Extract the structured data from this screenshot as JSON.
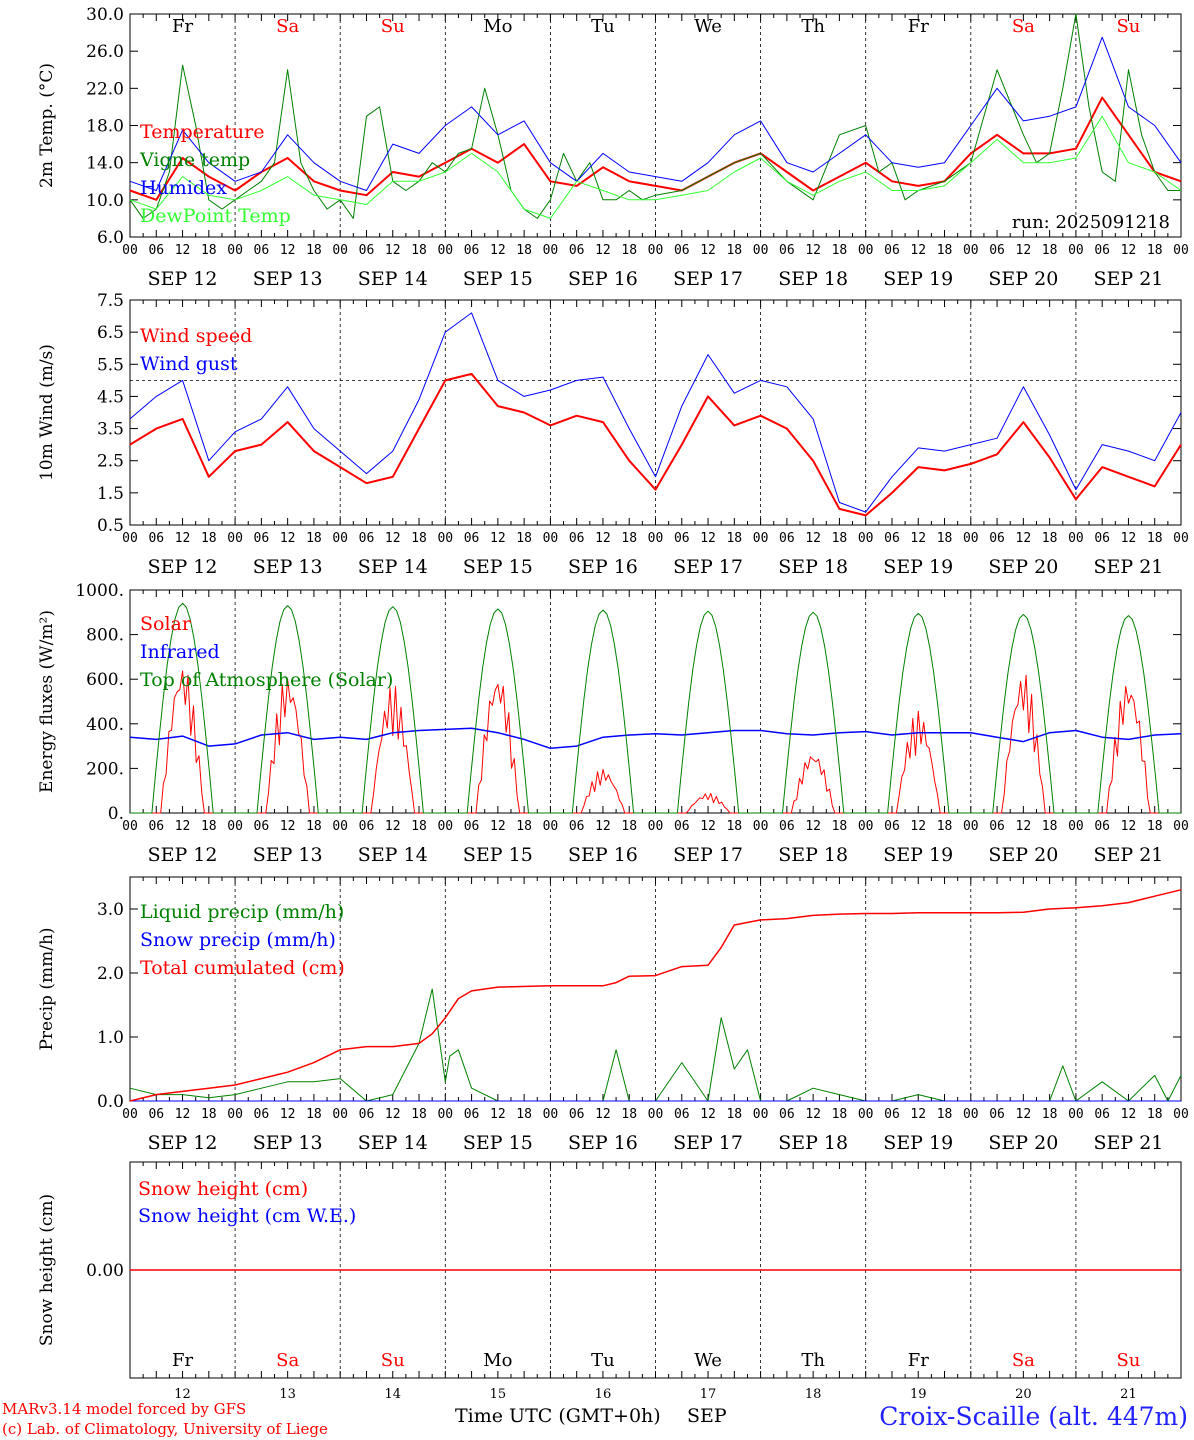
{
  "footer": {
    "model_line": "MARv3.14 model forced by GFS",
    "copyright_line": "(c) Lab. of Climatology, University of Liege",
    "xaxis_title": "Time UTC (GMT+0h)",
    "month": "SEP",
    "station": "Croix-Scaille (alt. 447m)"
  },
  "colors": {
    "red": "#ff0000",
    "green": "#008000",
    "blue": "#0000ff",
    "lime": "#33ff33",
    "black": "#000000"
  },
  "days": [
    {
      "abbr": "Fr",
      "date": "SEP 12",
      "num": "12",
      "weekend": false
    },
    {
      "abbr": "Sa",
      "date": "SEP 13",
      "num": "13",
      "weekend": true
    },
    {
      "abbr": "Su",
      "date": "SEP 14",
      "num": "14",
      "weekend": true
    },
    {
      "abbr": "Mo",
      "date": "SEP 15",
      "num": "15",
      "weekend": false
    },
    {
      "abbr": "Tu",
      "date": "SEP 16",
      "num": "16",
      "weekend": false
    },
    {
      "abbr": "We",
      "date": "SEP 17",
      "num": "17",
      "weekend": false
    },
    {
      "abbr": "Th",
      "date": "SEP 18",
      "num": "18",
      "weekend": false
    },
    {
      "abbr": "Fr",
      "date": "SEP 19",
      "num": "19",
      "weekend": false
    },
    {
      "abbr": "Sa",
      "date": "SEP 20",
      "num": "20",
      "weekend": true
    },
    {
      "abbr": "Su",
      "date": "SEP 21",
      "num": "21",
      "weekend": true
    }
  ],
  "hour_ticks": [
    "00",
    "06",
    "12",
    "18"
  ],
  "hour_end": "00",
  "chart_data": [
    {
      "type": "line",
      "ylabel": "2m Temp. (°C)",
      "ylim": [
        6,
        30
      ],
      "yticks": [
        "6.0",
        "10.0",
        "14.0",
        "18.0",
        "22.0",
        "26.0",
        "30.0"
      ],
      "annotation": "run: 2025091218",
      "x_unit": "hours since SEP 12 00 UTC",
      "series": [
        {
          "name": "Temperature",
          "color": "red",
          "width": 2,
          "x": [
            0,
            6,
            12,
            18,
            24,
            30,
            36,
            42,
            48,
            54,
            60,
            66,
            72,
            78,
            84,
            90,
            96,
            102,
            108,
            114,
            120,
            126,
            132,
            138,
            144,
            150,
            156,
            162,
            168,
            174,
            180,
            186,
            192,
            198,
            204,
            210,
            216,
            222,
            228,
            234,
            240
          ],
          "y": [
            11,
            10,
            14.5,
            12.5,
            11,
            13,
            14.5,
            12,
            11,
            10.5,
            13,
            12.5,
            14,
            15.5,
            14,
            16,
            12,
            11.5,
            13.5,
            12,
            11.5,
            11,
            12.5,
            14,
            15,
            13,
            11,
            12.5,
            14,
            12,
            11.5,
            12,
            15,
            17,
            15,
            15,
            15.5,
            21,
            17,
            13,
            12
          ]
        },
        {
          "name": "Vigne temp",
          "color": "green",
          "width": 1,
          "x": [
            0,
            3,
            6,
            9,
            12,
            15,
            18,
            21,
            24,
            27,
            30,
            33,
            36,
            39,
            42,
            45,
            48,
            51,
            54,
            57,
            60,
            63,
            66,
            69,
            72,
            75,
            78,
            81,
            84,
            87,
            90,
            93,
            96,
            99,
            102,
            105,
            108,
            111,
            114,
            117,
            120,
            126,
            132,
            138,
            144,
            150,
            156,
            162,
            168,
            171,
            174,
            177,
            180,
            186,
            192,
            198,
            204,
            207,
            210,
            213,
            216,
            219,
            222,
            225,
            228,
            231,
            234,
            237,
            240
          ],
          "y": [
            10,
            8,
            9,
            13,
            24.5,
            18,
            10,
            9,
            10,
            11,
            12,
            14,
            24,
            14,
            11,
            9,
            10,
            8,
            19,
            20,
            12,
            11,
            12,
            14,
            13,
            15,
            15.5,
            22,
            17,
            11,
            9,
            8,
            10,
            15,
            12,
            14,
            10,
            10,
            11,
            10,
            10.5,
            11,
            12.5,
            14,
            15,
            12,
            10,
            17,
            18,
            13,
            14,
            10,
            11,
            12,
            14,
            24,
            17,
            14,
            15,
            22,
            30,
            20,
            13,
            12,
            24,
            17,
            13,
            11,
            11
          ]
        },
        {
          "name": "Humidex",
          "color": "blue",
          "width": 1,
          "x": [
            0,
            6,
            12,
            18,
            24,
            30,
            36,
            42,
            48,
            54,
            60,
            66,
            72,
            78,
            84,
            90,
            96,
            102,
            108,
            114,
            120,
            126,
            132,
            138,
            144,
            150,
            156,
            162,
            168,
            174,
            180,
            186,
            192,
            198,
            204,
            210,
            216,
            222,
            228,
            234,
            240
          ],
          "y": [
            12,
            11,
            17.5,
            14,
            12,
            13,
            17,
            14,
            12,
            11,
            16,
            15,
            18,
            20,
            17,
            18.5,
            14,
            12,
            15,
            13,
            12.5,
            12,
            14,
            17,
            18.5,
            14,
            13,
            15,
            17,
            14,
            13.5,
            14,
            18,
            22,
            18.5,
            19,
            20,
            27.5,
            20,
            18,
            14
          ]
        },
        {
          "name": "DewPoint Temp",
          "color": "lime",
          "width": 1,
          "x": [
            0,
            6,
            12,
            18,
            24,
            30,
            36,
            42,
            48,
            54,
            60,
            66,
            72,
            78,
            84,
            90,
            96,
            102,
            108,
            114,
            120,
            126,
            132,
            138,
            144,
            150,
            156,
            162,
            168,
            174,
            180,
            186,
            192,
            198,
            204,
            210,
            216,
            222,
            228,
            234,
            240
          ],
          "y": [
            10,
            9,
            12.5,
            10.5,
            10,
            11,
            12.5,
            10.5,
            10,
            9.5,
            12,
            12,
            13,
            15,
            13,
            9,
            8,
            12,
            11,
            10,
            10,
            10.5,
            11,
            13,
            14.5,
            12,
            10.5,
            12,
            13,
            11,
            11,
            11.5,
            14,
            16.5,
            14,
            14,
            14.5,
            19,
            14,
            13,
            11
          ]
        }
      ]
    },
    {
      "type": "line",
      "ylabel": "10m Wind (m/s)",
      "ylim": [
        0.5,
        7.5
      ],
      "yticks": [
        "0.5",
        "1.5",
        "2.5",
        "3.5",
        "4.5",
        "5.5",
        "6.5",
        "7.5"
      ],
      "reference_line": 5,
      "x_unit": "hours since SEP 12 00 UTC",
      "series": [
        {
          "name": "Wind speed",
          "color": "red",
          "width": 2,
          "x": [
            0,
            6,
            12,
            18,
            24,
            30,
            36,
            42,
            48,
            54,
            60,
            66,
            72,
            78,
            84,
            90,
            96,
            102,
            108,
            114,
            120,
            126,
            132,
            138,
            144,
            150,
            156,
            162,
            168,
            174,
            180,
            186,
            192,
            198,
            204,
            210,
            216,
            222,
            228,
            234,
            240
          ],
          "y": [
            3,
            3.5,
            3.8,
            2,
            2.8,
            3,
            3.7,
            2.8,
            2.3,
            1.8,
            2,
            3.5,
            5,
            5.2,
            4.2,
            4,
            3.6,
            3.9,
            3.7,
            2.5,
            1.6,
            3,
            4.5,
            3.6,
            3.9,
            3.5,
            2.5,
            1,
            0.8,
            1.5,
            2.3,
            2.2,
            2.4,
            2.7,
            3.7,
            2.6,
            1.3,
            2.3,
            2,
            1.7,
            3
          ]
        },
        {
          "name": "Wind gust",
          "color": "blue",
          "width": 1,
          "x": [
            0,
            6,
            12,
            18,
            24,
            30,
            36,
            42,
            48,
            54,
            60,
            66,
            72,
            78,
            84,
            90,
            96,
            102,
            108,
            114,
            120,
            126,
            132,
            138,
            144,
            150,
            156,
            162,
            168,
            174,
            180,
            186,
            192,
            198,
            204,
            210,
            216,
            222,
            228,
            234,
            240
          ],
          "y": [
            3.8,
            4.5,
            5,
            2.5,
            3.4,
            3.8,
            4.8,
            3.5,
            2.8,
            2.1,
            2.8,
            4.4,
            6.5,
            7.1,
            5,
            4.5,
            4.7,
            5,
            5.1,
            3.5,
            2,
            4.2,
            5.8,
            4.6,
            5,
            4.8,
            3.8,
            1.2,
            0.9,
            2,
            2.9,
            2.8,
            3,
            3.2,
            4.8,
            3.3,
            1.6,
            3,
            2.8,
            2.5,
            4
          ]
        }
      ]
    },
    {
      "type": "line",
      "ylabel": "Energy fluxes (W/m²)",
      "ylim": [
        0,
        1000
      ],
      "yticks": [
        "0.",
        "200.",
        "400.",
        "600.",
        "800.",
        "1000."
      ],
      "x_unit": "hours since SEP 12 00 UTC",
      "series": [
        {
          "name": "Solar",
          "color": "red",
          "width": 1,
          "peak_hour": 12,
          "daily_peak": [
            680,
            630,
            580,
            640,
            200,
            90,
            280,
            460,
            640,
            610
          ]
        },
        {
          "name": "Infrared",
          "color": "blue",
          "width": 1.5,
          "x": [
            0,
            6,
            12,
            18,
            24,
            30,
            36,
            42,
            48,
            54,
            60,
            66,
            72,
            78,
            84,
            90,
            96,
            102,
            108,
            114,
            120,
            126,
            132,
            138,
            144,
            150,
            156,
            162,
            168,
            174,
            180,
            186,
            192,
            198,
            204,
            210,
            216,
            222,
            228,
            234,
            240
          ],
          "y": [
            340,
            330,
            345,
            300,
            310,
            350,
            360,
            330,
            340,
            330,
            360,
            370,
            375,
            380,
            360,
            330,
            290,
            300,
            340,
            350,
            355,
            350,
            360,
            370,
            370,
            355,
            350,
            360,
            365,
            350,
            360,
            360,
            360,
            340,
            320,
            360,
            370,
            340,
            330,
            350,
            355
          ]
        },
        {
          "name": "Top of Atmosphere (Solar)",
          "color": "green",
          "width": 1,
          "peak_hour": 12,
          "daily_peak": [
            940,
            930,
            925,
            915,
            910,
            905,
            900,
            895,
            890,
            885
          ]
        }
      ]
    },
    {
      "type": "line",
      "ylabel": "Precip (mm/h)",
      "ylim": [
        0,
        3.5
      ],
      "yticks": [
        "0.0",
        "1.0",
        "2.0",
        "3.0"
      ],
      "x_unit": "hours since SEP 12 00 UTC",
      "series": [
        {
          "name": "Liquid precip (mm/h)",
          "color": "green",
          "width": 1,
          "x": [
            0,
            6,
            12,
            18,
            24,
            30,
            36,
            42,
            48,
            54,
            60,
            66,
            69,
            72,
            73,
            75,
            78,
            84,
            96,
            108,
            111,
            114,
            120,
            126,
            132,
            135,
            138,
            141,
            144,
            150,
            156,
            162,
            168,
            174,
            180,
            186,
            192,
            198,
            204,
            210,
            213,
            216,
            222,
            228,
            234,
            237,
            240
          ],
          "y": [
            0.2,
            0.1,
            0.1,
            0.05,
            0.1,
            0.2,
            0.3,
            0.3,
            0.35,
            0,
            0.1,
            0.9,
            1.75,
            0.3,
            0.7,
            0.8,
            0.2,
            0,
            0,
            0,
            0.8,
            0,
            0,
            0.6,
            0,
            1.3,
            0.5,
            0.8,
            0,
            0,
            0.2,
            0.1,
            0,
            0,
            0.1,
            0,
            0,
            0,
            0,
            0,
            0.55,
            0,
            0.3,
            0,
            0.4,
            0,
            0.4
          ]
        },
        {
          "name": "Snow precip (mm/h)",
          "color": "blue",
          "width": 1,
          "x": [
            0,
            240
          ],
          "y": [
            0,
            0
          ]
        },
        {
          "name": "Total cumulated (cm)",
          "color": "red",
          "width": 1.5,
          "x": [
            0,
            6,
            12,
            18,
            24,
            30,
            36,
            42,
            48,
            54,
            60,
            66,
            69,
            72,
            75,
            78,
            84,
            96,
            108,
            111,
            114,
            120,
            126,
            132,
            135,
            138,
            144,
            150,
            156,
            162,
            168,
            174,
            180,
            186,
            192,
            198,
            204,
            210,
            216,
            222,
            228,
            234,
            240
          ],
          "y": [
            0,
            0.1,
            0.15,
            0.2,
            0.25,
            0.35,
            0.45,
            0.6,
            0.8,
            0.85,
            0.85,
            0.9,
            1.05,
            1.3,
            1.6,
            1.72,
            1.78,
            1.8,
            1.8,
            1.85,
            1.95,
            1.96,
            2.1,
            2.12,
            2.4,
            2.75,
            2.83,
            2.85,
            2.9,
            2.92,
            2.93,
            2.93,
            2.94,
            2.94,
            2.94,
            2.94,
            2.95,
            3.0,
            3.02,
            3.05,
            3.1,
            3.2,
            3.3
          ]
        }
      ]
    },
    {
      "type": "line",
      "ylabel": "Snow height (cm)",
      "ylim": [
        -1,
        1
      ],
      "yticks": [
        "0.00"
      ],
      "x_unit": "hours since SEP 12 00 UTC",
      "series": [
        {
          "name": "Snow height (cm)",
          "color": "red",
          "width": 1.5,
          "x": [
            0,
            240
          ],
          "y": [
            0,
            0
          ]
        },
        {
          "name": "Snow height (cm W.E.)",
          "color": "blue",
          "width": 1,
          "x": [
            0,
            240
          ],
          "y": [
            0,
            0
          ],
          "hidden_under": true
        }
      ]
    }
  ]
}
